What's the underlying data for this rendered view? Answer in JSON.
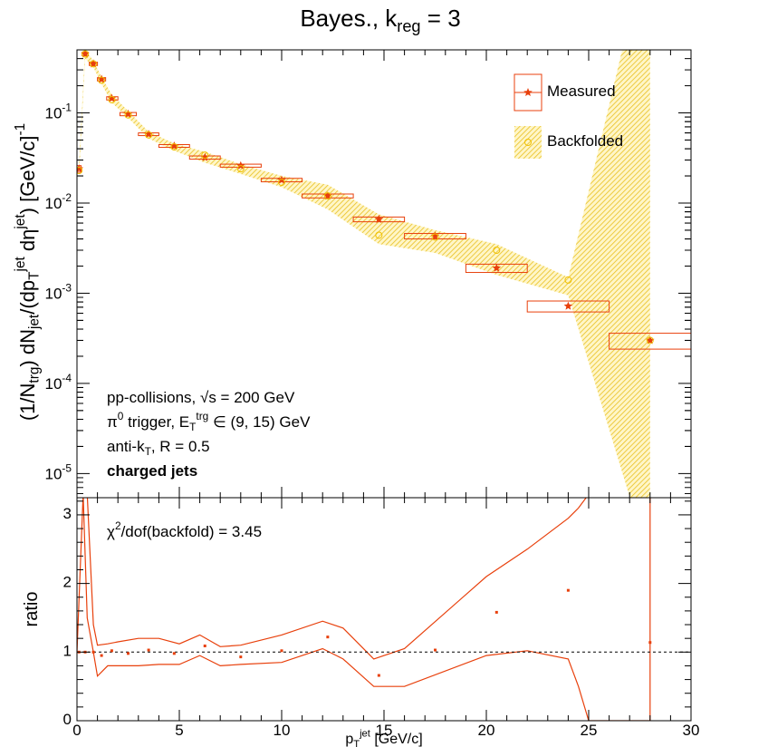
{
  "chart_data": [
    {
      "type": "scatter",
      "title": "Bayes., k_{reg} = 3",
      "ylabel": "(1/N_{trg}) dN_{jet}/(dp_{T}^{jet} dη^{jet}) [GeV/c]^{-1}",
      "ylog": true,
      "xlim": [
        0,
        30
      ],
      "ylim": [
        5.4e-06,
        0.5
      ],
      "yticks": [
        {
          "value": 1e-05,
          "label": "10^{-5}"
        },
        {
          "value": 0.0001,
          "label": "10^{-4}"
        },
        {
          "value": 0.001,
          "label": "10^{-3}"
        },
        {
          "value": 0.01,
          "label": "10^{-2}"
        },
        {
          "value": 0.1,
          "label": "10^{-1}"
        }
      ],
      "legend": "top-right",
      "annotations": [
        {
          "text": "pp-collisions, √s = 200 GeV"
        },
        {
          "text": "π^{0} trigger, E_{T}^{trg} ∈ (9, 15) GeV"
        },
        {
          "text": "anti-k_{T}, R = 0.5"
        },
        {
          "text": "charged jets",
          "bold": true
        }
      ],
      "series": [
        {
          "name": "Measured",
          "color": "#e8400c",
          "x": [
            0.1,
            0.4,
            0.8,
            1.2,
            1.7,
            2.5,
            3.5,
            4.75,
            6.25,
            8,
            10,
            12.25,
            14.75,
            17.5,
            20.5,
            24,
            28
          ],
          "x_low": [
            0,
            0.25,
            0.6,
            1.0,
            1.45,
            2.1,
            3.0,
            4.0,
            5.5,
            7.0,
            9.0,
            11.0,
            13.5,
            16.0,
            19.0,
            22.0,
            26.0
          ],
          "x_high": [
            0.2,
            0.55,
            1.0,
            1.4,
            2.0,
            2.9,
            4.0,
            5.5,
            7.0,
            9.0,
            11.0,
            13.5,
            16.0,
            19.0,
            22.0,
            26.0,
            30.0
          ],
          "values": [
            0.024,
            0.45,
            0.35,
            0.236,
            0.145,
            0.097,
            0.058,
            0.043,
            0.032,
            0.026,
            0.018,
            0.012,
            0.0066,
            0.0043,
            0.0019,
            0.00072,
            0.0003
          ],
          "errors": [
            0.002,
            0.02,
            0.015,
            0.01,
            0.006,
            0.004,
            0.002,
            0.0015,
            0.0013,
            0.001,
            0.0008,
            0.0006,
            0.0004,
            0.0003,
            0.0002,
            0.0001,
            6e-05
          ]
        },
        {
          "name": "Backfolded",
          "color": "#f0c000",
          "x": [
            0.1,
            0.4,
            0.8,
            1.2,
            1.7,
            2.5,
            3.5,
            4.75,
            6.25,
            8,
            10,
            12.25,
            14.75,
            17.5,
            20.5,
            24,
            28
          ],
          "values": [
            0.023,
            0.45,
            0.35,
            0.23,
            0.14,
            0.095,
            0.057,
            0.042,
            0.034,
            0.024,
            0.017,
            0.012,
            0.0044,
            0.0042,
            0.003,
            0.0014,
            0.0003
          ],
          "band_low": [
            0.02,
            0.4,
            0.32,
            0.21,
            0.13,
            0.088,
            0.052,
            0.038,
            0.028,
            0.021,
            0.015,
            0.0085,
            0.0035,
            0.0028,
            0.0016,
            0.00095,
            1e-06
          ],
          "band_high": [
            0.028,
            0.5,
            0.38,
            0.25,
            0.16,
            0.105,
            0.062,
            0.046,
            0.037,
            0.027,
            0.02,
            0.016,
            0.0075,
            0.005,
            0.0035,
            0.0015,
            10
          ]
        }
      ]
    },
    {
      "type": "scatter",
      "ylabel": "ratio",
      "xlabel": "p_{T}^{jet} [GeV/c]",
      "xlim": [
        0,
        30
      ],
      "xticks": [
        0,
        5,
        10,
        15,
        20,
        25,
        30
      ],
      "ylim": [
        0,
        3.25
      ],
      "yticks": [
        0,
        1,
        2,
        3
      ],
      "annotations": [
        {
          "text": "χ^{2}/dof(backfold) = 3.45"
        }
      ],
      "series": [
        {
          "color": "#e8400c",
          "x": [
            0.1,
            0.4,
            0.8,
            1.2,
            1.7,
            2.5,
            3.5,
            4.75,
            6.25,
            8,
            10,
            12.25,
            14.75,
            17.5,
            20.5,
            24,
            28
          ],
          "values": [
            1.0,
            1.0,
            1.0,
            0.95,
            1.02,
            0.98,
            1.03,
            0.98,
            1.09,
            0.93,
            1.02,
            1.22,
            0.66,
            1.03,
            1.58,
            1.9,
            1.14
          ]
        }
      ],
      "band": {
        "color": "#e8400c",
        "x": [
          0,
          0.3,
          0.5,
          0.8,
          1,
          1.5,
          2,
          3,
          4,
          5,
          6,
          7,
          8,
          10,
          12,
          13,
          14.5,
          16,
          20,
          22,
          24,
          24.5,
          25,
          28
        ],
        "upper": [
          1,
          3.3,
          3.3,
          1.4,
          1.1,
          1.12,
          1.15,
          1.2,
          1.2,
          1.12,
          1.25,
          1.08,
          1.1,
          1.25,
          1.45,
          1.35,
          0.9,
          1.05,
          2.1,
          2.5,
          2.95,
          3.1,
          3.3,
          3.3
        ],
        "lower": [
          1,
          3.3,
          1.5,
          1.0,
          0.65,
          0.8,
          0.8,
          0.8,
          0.82,
          0.82,
          0.95,
          0.8,
          0.82,
          0.85,
          1.05,
          0.9,
          0.5,
          0.5,
          0.95,
          1.02,
          0.9,
          0.5,
          0,
          0
        ]
      }
    }
  ]
}
